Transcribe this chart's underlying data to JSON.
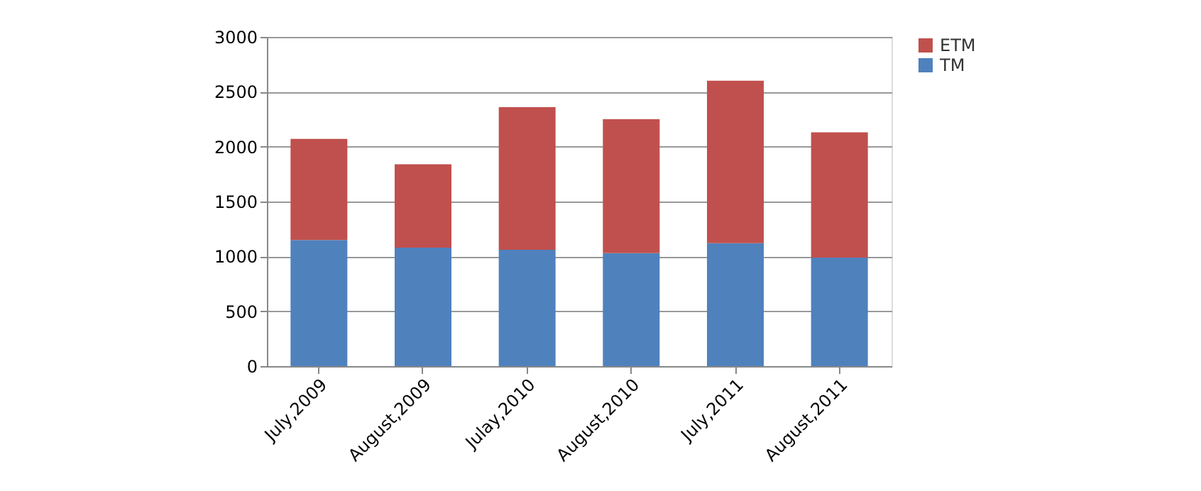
{
  "chart_data": {
    "type": "bar",
    "stacked": true,
    "categories": [
      "July,2009",
      "August,2009",
      "Julay,2010",
      "August,2010",
      "July,2011",
      "August,2011"
    ],
    "series": [
      {
        "name": "TM",
        "color": "#4f81bd",
        "values": [
          1150,
          1080,
          1060,
          1030,
          1120,
          990
        ]
      },
      {
        "name": "ETM",
        "color": "#c0504d",
        "values": [
          920,
          760,
          1300,
          1220,
          1480,
          1140
        ]
      }
    ],
    "ylim": [
      0,
      3000
    ],
    "yticks": [
      0,
      500,
      1000,
      1500,
      2000,
      2500,
      3000
    ],
    "grid": "y",
    "legend": "right"
  }
}
